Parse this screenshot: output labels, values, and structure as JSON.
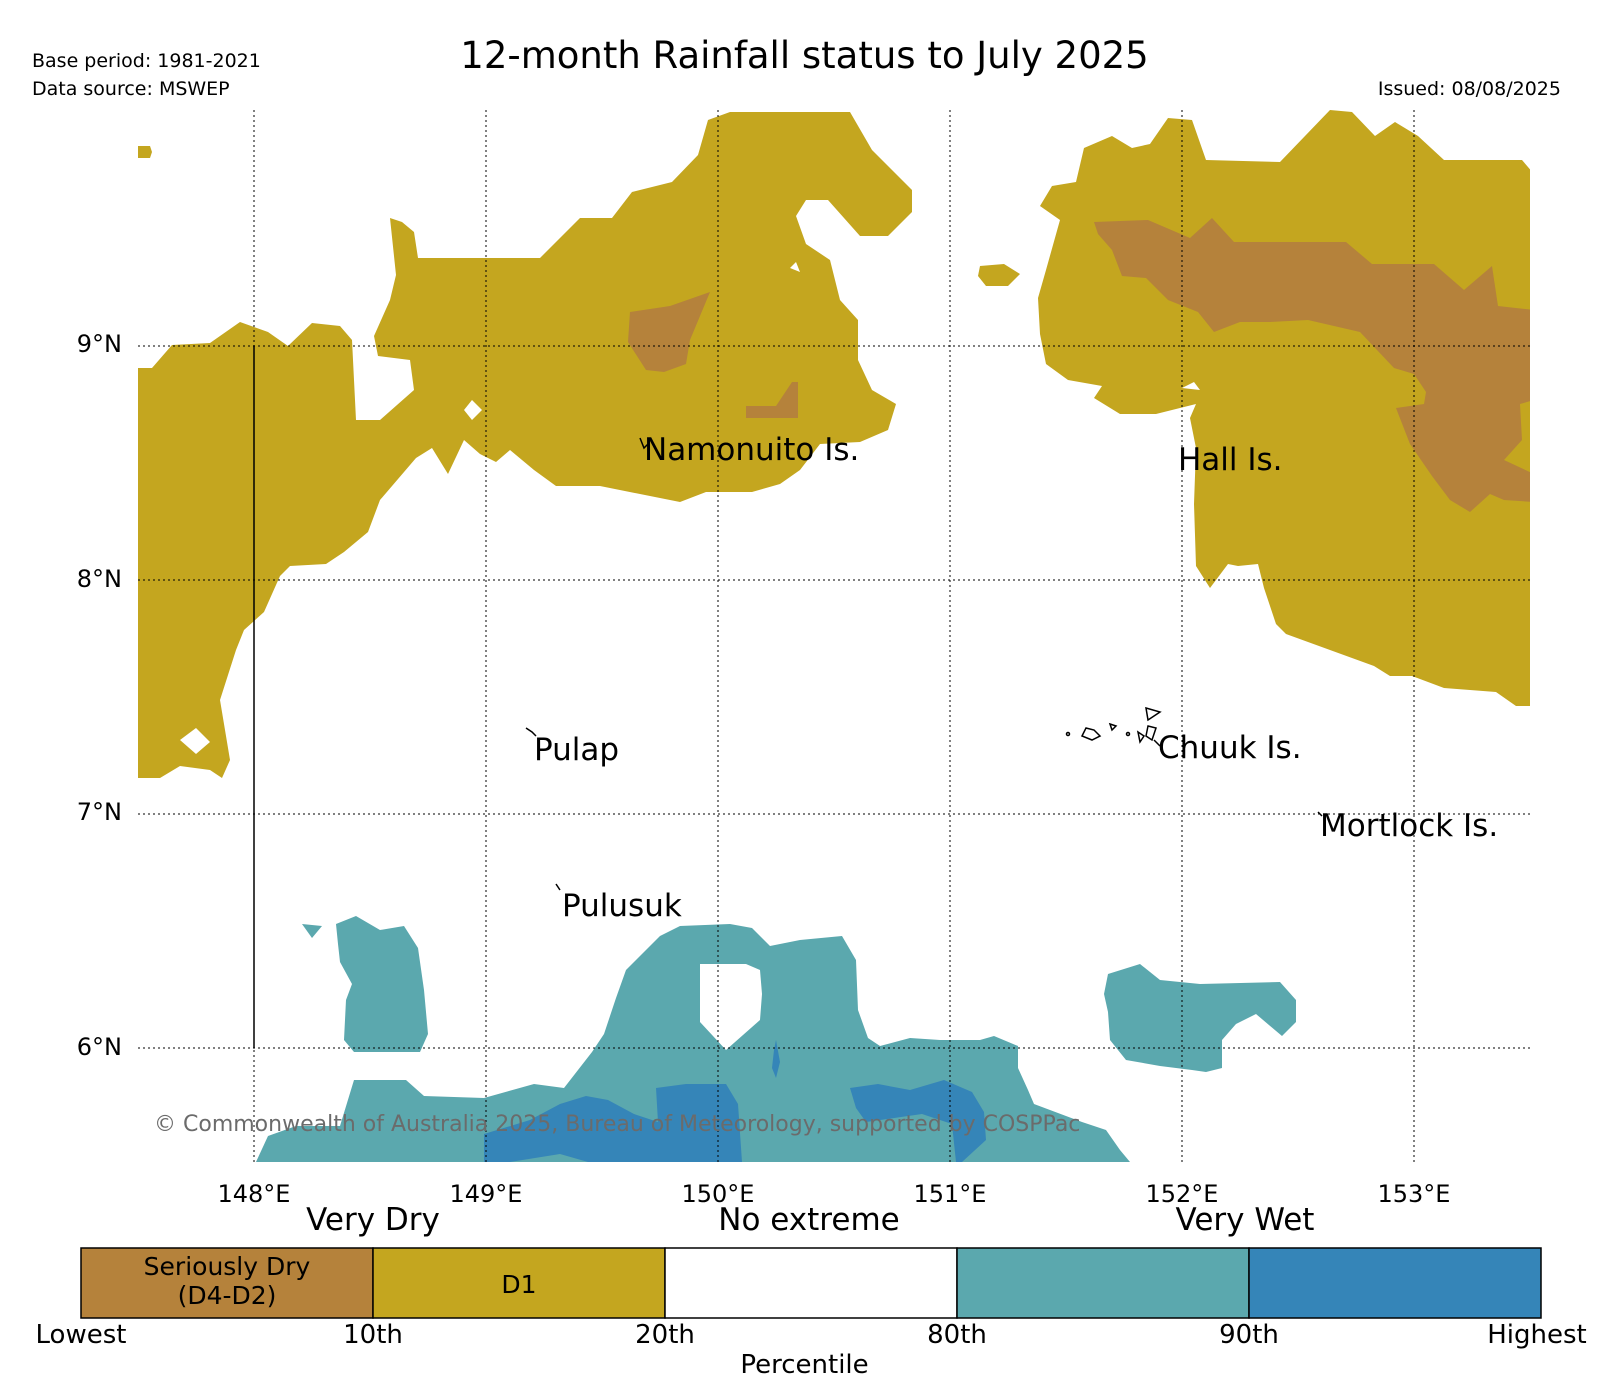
{
  "header": {
    "title": "12-month Rainfall status to July 2025",
    "base_period": "Base period: 1981-2021",
    "data_source": "Data source: MSWEP",
    "issued": "Issued: 08/08/2025"
  },
  "map": {
    "latitude_labels": [
      "9°N",
      "8°N",
      "7°N",
      "6°N"
    ],
    "longitude_labels": [
      "148°E",
      "149°E",
      "150°E",
      "151°E",
      "152°E",
      "153°E"
    ],
    "places": [
      "Namonuito Is.",
      "Hall Is.",
      "Pulap",
      "Chuuk Is.",
      "Mortlock Is.",
      "Pulusuk"
    ],
    "copyright": "© Commonwealth of Australia 2025, Bureau of Meteorology, supported by COSPPac"
  },
  "legend": {
    "categories": [
      "Very Dry",
      "No extreme",
      "Very Wet"
    ],
    "cells": [
      "Seriously Dry\n(D4-D2)",
      "D1",
      "",
      "",
      ""
    ],
    "colors": [
      "#b5823b",
      "#c4a61f",
      "#ffffff",
      "#5ba8ae",
      "#3585b8"
    ],
    "percentile_ticks": [
      "Lowest",
      "10th",
      "20th",
      "80th",
      "90th",
      "Highest"
    ],
    "axis_label": "Percentile"
  }
}
